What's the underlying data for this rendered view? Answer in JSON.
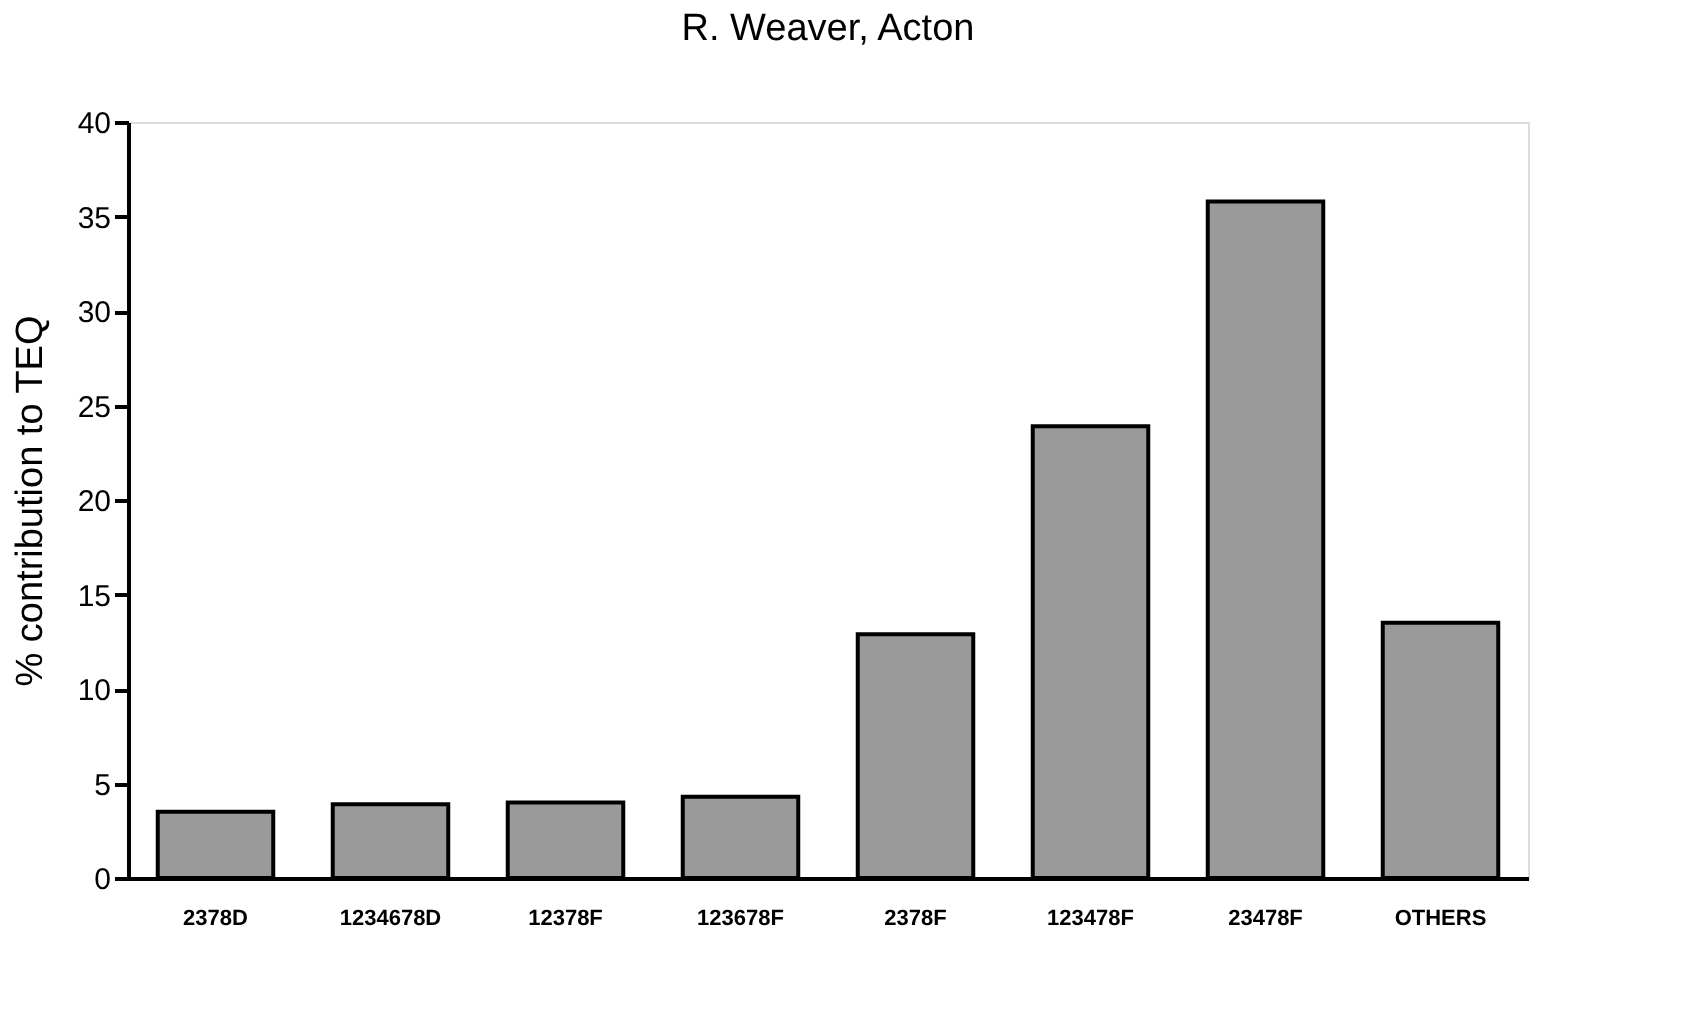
{
  "chart_data": {
    "type": "bar",
    "title": "R. Weaver, Acton",
    "ylabel": "% contribution to TEQ",
    "categories": [
      "2378D",
      "1234678D",
      "12378F",
      "123678F",
      "2378F",
      "123478F",
      "23478F",
      "OTHERS"
    ],
    "values": [
      3.5,
      3.9,
      4.0,
      4.3,
      12.9,
      23.9,
      35.8,
      13.5
    ],
    "color": "#9a9a9a",
    "ylim": [
      0,
      40
    ],
    "yticks": [
      0,
      5,
      10,
      15,
      20,
      25,
      30,
      35,
      40
    ],
    "grid": false
  }
}
